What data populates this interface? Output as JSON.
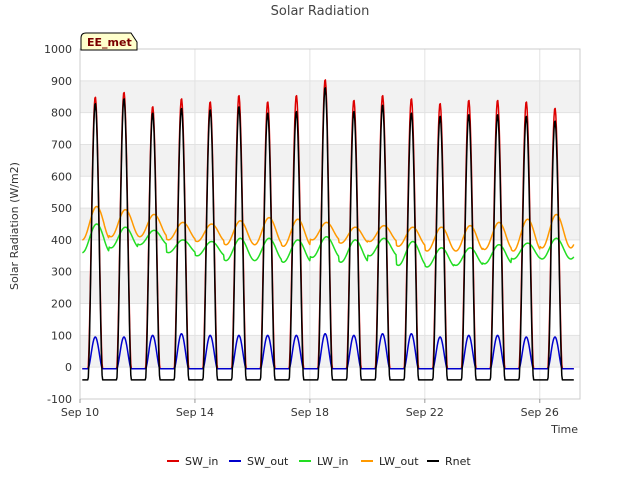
{
  "chart_data": {
    "type": "line",
    "title": "Solar Radiation",
    "xlabel": "Time",
    "ylabel": "Solar Radiation (W/m2)",
    "station_label": "EE_met",
    "xlim": [
      "2023-09-10",
      "2023-09-27.4"
    ],
    "ylim": [
      -100,
      1000
    ],
    "yticks": [
      -100,
      0,
      100,
      200,
      300,
      400,
      500,
      600,
      700,
      800,
      900,
      1000
    ],
    "xticks": [
      {
        "date": "2023-09-10",
        "label": "Sep 10"
      },
      {
        "date": "2023-09-14",
        "label": "Sep 14"
      },
      {
        "date": "2023-09-18",
        "label": "Sep 18"
      },
      {
        "date": "2023-09-22",
        "label": "Sep 22"
      },
      {
        "date": "2023-09-26",
        "label": "Sep 26"
      }
    ],
    "grid": true,
    "legend_position": "bottom",
    "days": [
      "2023-09-10",
      "2023-09-11",
      "2023-09-12",
      "2023-09-13",
      "2023-09-14",
      "2023-09-15",
      "2023-09-16",
      "2023-09-17",
      "2023-09-18",
      "2023-09-19",
      "2023-09-20",
      "2023-09-21",
      "2023-09-22",
      "2023-09-23",
      "2023-09-24",
      "2023-09-25",
      "2023-09-26"
    ],
    "series": [
      {
        "name": "SW_in",
        "color": "#dd0000",
        "daily_peak": [
          850,
          865,
          820,
          845,
          835,
          855,
          835,
          855,
          905,
          840,
          855,
          845,
          830,
          840,
          840,
          835,
          815
        ],
        "night": -5
      },
      {
        "name": "SW_out",
        "color": "#0000cc",
        "daily_peak": [
          95,
          95,
          100,
          105,
          100,
          100,
          100,
          100,
          105,
          100,
          105,
          105,
          95,
          100,
          100,
          95,
          95
        ],
        "night": -5
      },
      {
        "name": "LW_in",
        "color": "#22dd22",
        "daily_peak": [
          450,
          440,
          430,
          400,
          395,
          405,
          405,
          400,
          410,
          400,
          405,
          395,
          375,
          375,
          385,
          390,
          405
        ],
        "daily_low": [
          360,
          375,
          385,
          360,
          350,
          335,
          335,
          330,
          345,
          330,
          350,
          320,
          315,
          320,
          325,
          340,
          340
        ]
      },
      {
        "name": "LW_out",
        "color": "#ff9900",
        "daily_peak": [
          505,
          495,
          480,
          455,
          450,
          460,
          470,
          465,
          455,
          440,
          445,
          440,
          440,
          445,
          455,
          465,
          480
        ],
        "daily_low": [
          400,
          410,
          410,
          400,
          395,
          385,
          385,
          380,
          400,
          390,
          395,
          380,
          365,
          365,
          370,
          365,
          375
        ]
      },
      {
        "name": "Rnet",
        "color": "#000000",
        "daily_peak": [
          830,
          845,
          800,
          815,
          810,
          820,
          800,
          805,
          880,
          805,
          825,
          800,
          790,
          795,
          795,
          790,
          775
        ],
        "night": -40
      }
    ]
  }
}
